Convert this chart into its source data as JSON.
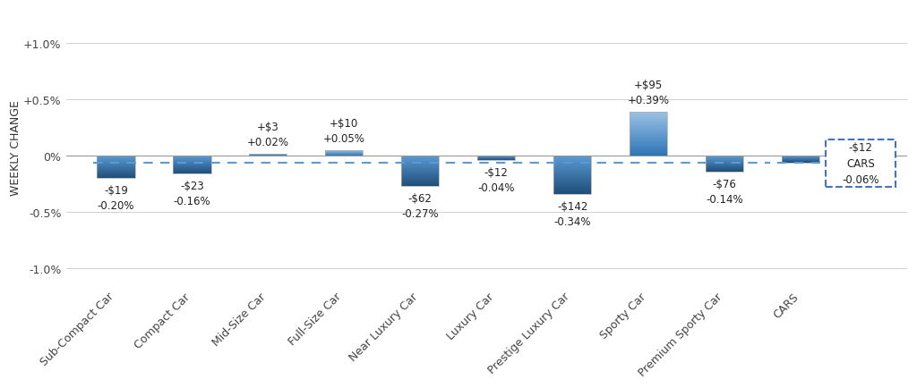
{
  "categories": [
    "Sub-Compact Car",
    "Compact Car",
    "Mid-Size Car",
    "Full-Size Car",
    "Near Luxury Car",
    "Luxury Car",
    "Prestige Luxury Car",
    "Sporty Car",
    "Premium Sporty Car",
    "CARS"
  ],
  "values_pct": [
    -0.002,
    -0.0016,
    0.0002,
    0.0005,
    -0.0027,
    -0.0004,
    -0.0034,
    0.0039,
    -0.0014,
    -0.0006
  ],
  "dollar_labels": [
    "-$19",
    "-$23",
    "+$3",
    "+$10",
    "-$62",
    "-$12",
    "-$142",
    "+$95",
    "-$76",
    "-$12"
  ],
  "pct_labels": [
    "-0.20%",
    "-0.16%",
    "+0.02%",
    "+0.05%",
    "-0.27%",
    "-0.04%",
    "-0.34%",
    "+0.39%",
    "-0.14%",
    "-0.06%"
  ],
  "dashed_line_y": -0.00065,
  "ytick_values": [
    0.01,
    0.005,
    0.0,
    -0.005,
    -0.01
  ],
  "ytick_labels": [
    "+1.0%",
    "+0.5%",
    "0%",
    "-0.5%",
    "-1.0%"
  ],
  "ylim": [
    -0.0115,
    0.013
  ],
  "xlim_left": -0.65,
  "xlim_right": 10.4,
  "bar_width": 0.5,
  "ylabel": "WEEKLY CHANGE",
  "background_color": "#ffffff",
  "grid_color": "#d0d0d0",
  "zero_line_color": "#999999",
  "dashed_color": "#5b9bd5",
  "annotation_fontsize": 8.5,
  "tick_fontsize": 9,
  "ylabel_fontsize": 9,
  "cars_box_color": "#4472c4",
  "bar_neg_color_top": "#5b9bd5",
  "bar_neg_color_bottom": "#1f4e79",
  "bar_pos_color_top": "#9dc3e6",
  "bar_pos_color_bottom": "#2e75b6"
}
